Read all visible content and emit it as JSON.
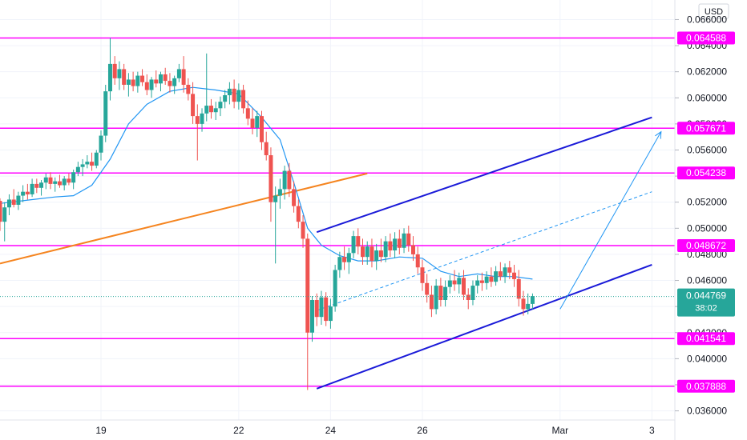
{
  "currency_label": "USD",
  "price_scale_ticks": [
    "0.066000",
    "0.064000",
    "0.062000",
    "0.060000",
    "0.058000",
    "0.056000",
    "0.054000",
    "0.052000",
    "0.050000",
    "0.048000",
    "0.046000",
    "0.044000",
    "0.042000",
    "0.040000",
    "0.038000",
    "0.036000"
  ],
  "time_axis_labels": [
    "19",
    "22",
    "24",
    "26",
    "Mar",
    "3"
  ],
  "current_price": {
    "value": "0.044769",
    "countdown": "38:02"
  },
  "colors": {
    "up": "#26a69a",
    "down": "#ef5350",
    "level": "#ff00ff",
    "channel": "#1a1ad8",
    "trend": "#f5841f",
    "ma": "#2196f3",
    "badge": "#26a69a"
  },
  "chart_data": {
    "type": "candlestick",
    "x_unit": "days (19 = Feb 19, Mar = 29)",
    "y_range": [
      0.0353,
      0.0675
    ],
    "x_range": [
      16.8,
      31.5
    ],
    "horizontal_levels": [
      "0.064588",
      "0.057671",
      "0.054238",
      "0.048672",
      "0.041541",
      "0.037888"
    ],
    "orange_trendline": [
      [
        16.8,
        0.0473
      ],
      [
        24.8,
        0.0542
      ]
    ],
    "channel_upper": [
      [
        23.7,
        0.0497
      ],
      [
        31.0,
        0.0585
      ]
    ],
    "channel_lower": [
      [
        23.7,
        0.0377
      ],
      [
        31.0,
        0.0472
      ]
    ],
    "channel_mid_dashed": [
      [
        23.7,
        0.0437
      ],
      [
        31.0,
        0.0528
      ]
    ],
    "projection_arrow": [
      [
        29.0,
        0.0438
      ],
      [
        31.2,
        0.0574
      ]
    ],
    "moving_average": [
      [
        16.8,
        0.0519
      ],
      [
        17.5,
        0.0522
      ],
      [
        18.0,
        0.0524
      ],
      [
        18.4,
        0.0525
      ],
      [
        18.8,
        0.0533
      ],
      [
        19.2,
        0.0553
      ],
      [
        19.6,
        0.058
      ],
      [
        20.0,
        0.0595
      ],
      [
        20.5,
        0.0605
      ],
      [
        21.0,
        0.0608
      ],
      [
        21.5,
        0.0606
      ],
      [
        22.0,
        0.0603
      ],
      [
        22.5,
        0.0585
      ],
      [
        22.9,
        0.0568
      ],
      [
        23.2,
        0.0535
      ],
      [
        23.5,
        0.05
      ],
      [
        23.8,
        0.0487
      ],
      [
        24.2,
        0.0479
      ],
      [
        24.6,
        0.0475
      ],
      [
        25.0,
        0.0475
      ],
      [
        25.5,
        0.0478
      ],
      [
        26.0,
        0.0477
      ],
      [
        26.4,
        0.0467
      ],
      [
        26.8,
        0.0463
      ],
      [
        27.2,
        0.0465
      ],
      [
        27.6,
        0.0463
      ],
      [
        28.0,
        0.0463
      ],
      [
        28.4,
        0.0461
      ]
    ],
    "candles": [
      [
        16.8,
        0.0521,
        0.0523,
        0.0498,
        0.0505
      ],
      [
        16.9,
        0.0505,
        0.052,
        0.049,
        0.0516
      ],
      [
        17.0,
        0.0516,
        0.0526,
        0.051,
        0.0522
      ],
      [
        17.1,
        0.0522,
        0.053,
        0.0516,
        0.0518
      ],
      [
        17.2,
        0.0518,
        0.0528,
        0.0514,
        0.0525
      ],
      [
        17.3,
        0.0525,
        0.0533,
        0.052,
        0.0528
      ],
      [
        17.4,
        0.0528,
        0.0534,
        0.0522,
        0.0526
      ],
      [
        17.5,
        0.0526,
        0.0538,
        0.0524,
        0.0534
      ],
      [
        17.6,
        0.0534,
        0.0538,
        0.0527,
        0.0531
      ],
      [
        17.7,
        0.0531,
        0.0537,
        0.0525,
        0.0535
      ],
      [
        17.8,
        0.0535,
        0.0542,
        0.053,
        0.0539
      ],
      [
        17.9,
        0.0539,
        0.0543,
        0.053,
        0.0534
      ],
      [
        18.0,
        0.0534,
        0.0539,
        0.0528,
        0.0536
      ],
      [
        18.1,
        0.0536,
        0.0541,
        0.0531,
        0.0533
      ],
      [
        18.2,
        0.0533,
        0.054,
        0.0529,
        0.0538
      ],
      [
        18.3,
        0.0538,
        0.0542,
        0.0533,
        0.0535
      ],
      [
        18.4,
        0.0535,
        0.0545,
        0.053,
        0.0543
      ],
      [
        18.5,
        0.0543,
        0.0551,
        0.054,
        0.0547
      ],
      [
        18.6,
        0.0547,
        0.0553,
        0.054,
        0.0549
      ],
      [
        18.7,
        0.0549,
        0.0556,
        0.0546,
        0.0551
      ],
      [
        18.8,
        0.0551,
        0.0558,
        0.0544,
        0.0548
      ],
      [
        18.9,
        0.0548,
        0.056,
        0.0546,
        0.0558
      ],
      [
        19.0,
        0.0558,
        0.0575,
        0.0552,
        0.0571
      ],
      [
        19.1,
        0.0571,
        0.061,
        0.0566,
        0.0605
      ],
      [
        19.2,
        0.0605,
        0.0646,
        0.0598,
        0.0626
      ],
      [
        19.3,
        0.0626,
        0.0632,
        0.061,
        0.0615
      ],
      [
        19.4,
        0.0615,
        0.0628,
        0.0606,
        0.0622
      ],
      [
        19.5,
        0.0622,
        0.0626,
        0.0606,
        0.061
      ],
      [
        19.6,
        0.061,
        0.0619,
        0.0601,
        0.0614
      ],
      [
        19.7,
        0.0614,
        0.062,
        0.0605,
        0.0609
      ],
      [
        19.8,
        0.0609,
        0.062,
        0.0604,
        0.0617
      ],
      [
        19.9,
        0.0617,
        0.0622,
        0.0609,
        0.0612
      ],
      [
        20.0,
        0.0612,
        0.0618,
        0.0602,
        0.0606
      ],
      [
        20.1,
        0.0606,
        0.0616,
        0.06,
        0.0614
      ],
      [
        20.2,
        0.0614,
        0.0621,
        0.0608,
        0.0611
      ],
      [
        20.3,
        0.0611,
        0.062,
        0.0605,
        0.0618
      ],
      [
        20.4,
        0.0618,
        0.0623,
        0.061,
        0.0613
      ],
      [
        20.5,
        0.0613,
        0.0619,
        0.0604,
        0.0609
      ],
      [
        20.6,
        0.0609,
        0.0617,
        0.0603,
        0.0615
      ],
      [
        20.7,
        0.0615,
        0.0626,
        0.0612,
        0.0622
      ],
      [
        20.8,
        0.0622,
        0.0632,
        0.0604,
        0.061
      ],
      [
        20.9,
        0.061,
        0.0615,
        0.0598,
        0.0603
      ],
      [
        21.0,
        0.0603,
        0.0612,
        0.058,
        0.0586
      ],
      [
        21.1,
        0.0586,
        0.0595,
        0.0552,
        0.058
      ],
      [
        21.2,
        0.058,
        0.0592,
        0.0574,
        0.0588
      ],
      [
        21.3,
        0.0588,
        0.0634,
        0.0582,
        0.0594
      ],
      [
        21.4,
        0.0594,
        0.0599,
        0.0584,
        0.0589
      ],
      [
        21.5,
        0.0589,
        0.0597,
        0.0583,
        0.0592
      ],
      [
        21.6,
        0.0592,
        0.0601,
        0.0586,
        0.0597
      ],
      [
        21.7,
        0.0597,
        0.0606,
        0.0592,
        0.0602
      ],
      [
        21.8,
        0.0602,
        0.0612,
        0.0595,
        0.0607
      ],
      [
        21.9,
        0.0607,
        0.0614,
        0.0592,
        0.0597
      ],
      [
        22.0,
        0.0597,
        0.0611,
        0.0591,
        0.0606
      ],
      [
        22.1,
        0.0606,
        0.061,
        0.0588,
        0.0592
      ],
      [
        22.2,
        0.0592,
        0.0598,
        0.0579,
        0.0584
      ],
      [
        22.3,
        0.0584,
        0.0592,
        0.0572,
        0.0577
      ],
      [
        22.4,
        0.0577,
        0.059,
        0.057,
        0.0586
      ],
      [
        22.5,
        0.0586,
        0.059,
        0.056,
        0.0566
      ],
      [
        22.6,
        0.0566,
        0.0574,
        0.0552,
        0.0556
      ],
      [
        22.7,
        0.0556,
        0.0562,
        0.0505,
        0.052
      ],
      [
        22.8,
        0.052,
        0.0532,
        0.0473,
        0.0525
      ],
      [
        22.9,
        0.0525,
        0.0538,
        0.0515,
        0.053
      ],
      [
        23.0,
        0.053,
        0.0548,
        0.0522,
        0.0544
      ],
      [
        23.1,
        0.0544,
        0.055,
        0.0524,
        0.053
      ],
      [
        23.2,
        0.053,
        0.0536,
        0.0512,
        0.0517
      ],
      [
        23.3,
        0.0517,
        0.0522,
        0.05,
        0.0505
      ],
      [
        23.4,
        0.0505,
        0.051,
        0.0485,
        0.0492
      ],
      [
        23.5,
        0.0492,
        0.0496,
        0.0376,
        0.042
      ],
      [
        23.6,
        0.042,
        0.0448,
        0.0413,
        0.0445
      ],
      [
        23.7,
        0.0445,
        0.045,
        0.0425,
        0.0432
      ],
      [
        23.8,
        0.0432,
        0.0452,
        0.0426,
        0.0447
      ],
      [
        23.9,
        0.0447,
        0.0451,
        0.0425,
        0.0429
      ],
      [
        24.0,
        0.0429,
        0.0446,
        0.0423,
        0.044
      ],
      [
        24.1,
        0.044,
        0.0472,
        0.0436,
        0.0468
      ],
      [
        24.2,
        0.0468,
        0.0482,
        0.0462,
        0.0478
      ],
      [
        24.3,
        0.0478,
        0.0486,
        0.0468,
        0.0474
      ],
      [
        24.4,
        0.0474,
        0.0485,
        0.0465,
        0.0481
      ],
      [
        24.5,
        0.0481,
        0.0498,
        0.0477,
        0.0494
      ],
      [
        24.6,
        0.0494,
        0.05,
        0.048,
        0.0486
      ],
      [
        24.7,
        0.0486,
        0.0492,
        0.0472,
        0.0478
      ],
      [
        24.8,
        0.0478,
        0.049,
        0.0472,
        0.0486
      ],
      [
        24.9,
        0.0486,
        0.0492,
        0.047,
        0.0475
      ],
      [
        25.0,
        0.0475,
        0.0488,
        0.0468,
        0.0483
      ],
      [
        25.1,
        0.0483,
        0.0492,
        0.0474,
        0.0478
      ],
      [
        25.2,
        0.0478,
        0.0494,
        0.0474,
        0.049
      ],
      [
        25.3,
        0.049,
        0.0496,
        0.0478,
        0.0483
      ],
      [
        25.4,
        0.0483,
        0.0497,
        0.0477,
        0.0492
      ],
      [
        25.5,
        0.0492,
        0.0499,
        0.048,
        0.0485
      ],
      [
        25.6,
        0.0485,
        0.05,
        0.0481,
        0.0496
      ],
      [
        25.7,
        0.0496,
        0.0502,
        0.0482,
        0.0487
      ],
      [
        25.8,
        0.0487,
        0.0494,
        0.0475,
        0.048
      ],
      [
        25.9,
        0.048,
        0.0486,
        0.0465,
        0.047
      ],
      [
        26.0,
        0.047,
        0.0476,
        0.0452,
        0.0458
      ],
      [
        26.1,
        0.0458,
        0.0465,
        0.0443,
        0.0449
      ],
      [
        26.2,
        0.0449,
        0.0456,
        0.0432,
        0.0438
      ],
      [
        26.3,
        0.0438,
        0.0461,
        0.0434,
        0.0456
      ],
      [
        26.4,
        0.0456,
        0.0462,
        0.044,
        0.0445
      ],
      [
        26.5,
        0.0445,
        0.046,
        0.044,
        0.0455
      ],
      [
        26.6,
        0.0455,
        0.0464,
        0.045,
        0.046
      ],
      [
        26.7,
        0.046,
        0.0468,
        0.0452,
        0.0457
      ],
      [
        26.8,
        0.0457,
        0.0466,
        0.045,
        0.0462
      ],
      [
        26.9,
        0.0462,
        0.0468,
        0.0445,
        0.0449
      ],
      [
        27.0,
        0.0449,
        0.0454,
        0.0438,
        0.0445
      ],
      [
        27.1,
        0.0445,
        0.046,
        0.0441,
        0.0456
      ],
      [
        27.2,
        0.0456,
        0.0464,
        0.045,
        0.046
      ],
      [
        27.3,
        0.046,
        0.0466,
        0.0452,
        0.0458
      ],
      [
        27.4,
        0.0458,
        0.0467,
        0.0453,
        0.0463
      ],
      [
        27.5,
        0.0463,
        0.047,
        0.0455,
        0.0459
      ],
      [
        27.6,
        0.0459,
        0.0471,
        0.0456,
        0.0467
      ],
      [
        27.7,
        0.0467,
        0.0474,
        0.046,
        0.0463
      ],
      [
        27.8,
        0.0463,
        0.0473,
        0.0458,
        0.047
      ],
      [
        27.9,
        0.047,
        0.0475,
        0.0461,
        0.0466
      ],
      [
        28.0,
        0.0466,
        0.0472,
        0.0455,
        0.0461
      ],
      [
        28.1,
        0.0461,
        0.0468,
        0.044,
        0.0446
      ],
      [
        28.2,
        0.0446,
        0.0452,
        0.0433,
        0.0438
      ],
      [
        28.3,
        0.0438,
        0.045,
        0.0434,
        0.0442
      ],
      [
        28.4,
        0.0442,
        0.045,
        0.0438,
        0.0448
      ]
    ]
  }
}
